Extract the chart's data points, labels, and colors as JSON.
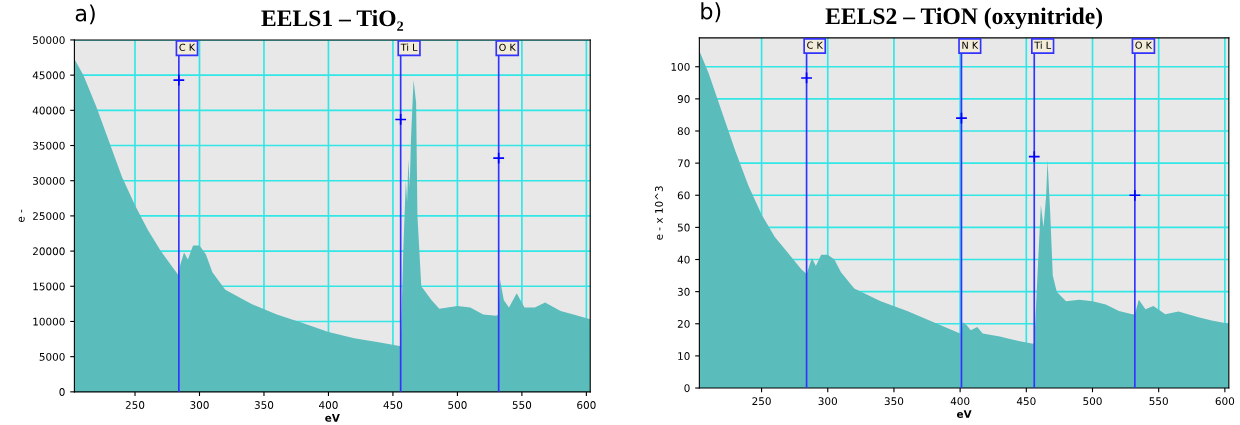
{
  "chart_data": [
    {
      "type": "area",
      "title": "EELS1 – TiO₂",
      "xlabel": "eV",
      "ylabel": "e -",
      "annotations": [
        "a)"
      ],
      "xlim": [
        203,
        603
      ],
      "xticks": [
        250,
        300,
        350,
        400,
        450,
        500,
        550,
        600
      ],
      "ylim": [
        0,
        50000
      ],
      "yticks": [
        0,
        5000,
        10000,
        15000,
        20000,
        25000,
        30000,
        35000,
        40000,
        45000,
        50000
      ],
      "grid": true,
      "series": [
        {
          "color": "#5bbcbc",
          "x": [
            203,
            210,
            220,
            230,
            240,
            250,
            260,
            270,
            280,
            284,
            285,
            288,
            291,
            295,
            300,
            305,
            310,
            320,
            340,
            360,
            380,
            400,
            420,
            440,
            455,
            456,
            458,
            460,
            461,
            462,
            463,
            464,
            466,
            468,
            469,
            472,
            480,
            486,
            500,
            510,
            520,
            530,
            532,
            533,
            536,
            540,
            546,
            552,
            560,
            568,
            580,
            590,
            603
          ],
          "values": [
            47300,
            45000,
            40500,
            35500,
            30500,
            26500,
            23000,
            20000,
            17500,
            16500,
            18000,
            19800,
            18800,
            20800,
            20800,
            19500,
            17000,
            14500,
            12500,
            11000,
            9800,
            8500,
            7600,
            7000,
            6500,
            6500,
            20000,
            30000,
            27000,
            33000,
            29000,
            36000,
            44300,
            41000,
            25000,
            15000,
            13000,
            11800,
            12200,
            12000,
            11000,
            10800,
            11000,
            16000,
            13000,
            12000,
            14000,
            12000,
            12000,
            12700,
            11500,
            11000,
            10300
          ]
        },
        {
          "type": "scatter",
          "color": "#0000ff",
          "marker": "cross",
          "x": [
            284,
            456,
            532
          ],
          "values": [
            44300,
            38700,
            33200
          ]
        }
      ],
      "ref_lines": [
        {
          "axis": "x",
          "value": 284,
          "label": "C K",
          "color": "#3333ff"
        },
        {
          "axis": "x",
          "value": 456,
          "label": "Ti L",
          "color": "#3333ff"
        },
        {
          "axis": "x",
          "value": 532,
          "label": "O K",
          "color": "#3333ff"
        }
      ]
    },
    {
      "type": "area",
      "title": "EELS2 – TiON (oxynitride)",
      "xlabel": "eV",
      "ylabel": "e - x 10^3",
      "annotations": [
        "b)"
      ],
      "xlim": [
        203,
        603
      ],
      "xticks": [
        250,
        300,
        350,
        400,
        450,
        500,
        550,
        600
      ],
      "ylim": [
        0,
        109
      ],
      "yticks": [
        0,
        10,
        20,
        30,
        40,
        50,
        60,
        70,
        80,
        90,
        100
      ],
      "grid": true,
      "series": [
        {
          "color": "#5bbcbc",
          "x": [
            203,
            210,
            220,
            230,
            240,
            250,
            260,
            270,
            280,
            284,
            288,
            291,
            295,
            300,
            305,
            310,
            320,
            340,
            360,
            380,
            400,
            401,
            402,
            405,
            408,
            413,
            417,
            430,
            440,
            455,
            456,
            459,
            461,
            463,
            465,
            466,
            468,
            470,
            473,
            480,
            490,
            500,
            510,
            520,
            530,
            532,
            535,
            540,
            546,
            555,
            565,
            580,
            590,
            603
          ],
          "values": [
            105,
            98,
            86,
            74,
            63,
            54,
            47,
            42,
            37,
            35.5,
            40.5,
            38,
            41.5,
            41.5,
            40,
            36,
            31,
            27,
            24,
            20.5,
            17,
            17.5,
            20.5,
            19.5,
            18,
            19,
            17,
            16,
            15,
            13.8,
            14,
            40,
            57,
            50,
            60,
            71,
            55,
            35,
            30,
            27,
            27.5,
            27,
            26,
            24,
            23,
            23,
            27.5,
            24.5,
            25.5,
            23,
            23.8,
            22,
            21,
            20
          ]
        },
        {
          "type": "scatter",
          "color": "#0000ff",
          "marker": "cross",
          "x": [
            284,
            401,
            456,
            532
          ],
          "values": [
            96.5,
            84,
            72,
            60
          ]
        }
      ],
      "ref_lines": [
        {
          "axis": "x",
          "value": 284,
          "label": "C K",
          "color": "#3333ff"
        },
        {
          "axis": "x",
          "value": 401,
          "label": "N K",
          "color": "#3333ff"
        },
        {
          "axis": "x",
          "value": 456,
          "label": "Ti L",
          "color": "#3333ff"
        },
        {
          "axis": "x",
          "value": 532,
          "label": "O K",
          "color": "#3333ff"
        }
      ]
    }
  ]
}
